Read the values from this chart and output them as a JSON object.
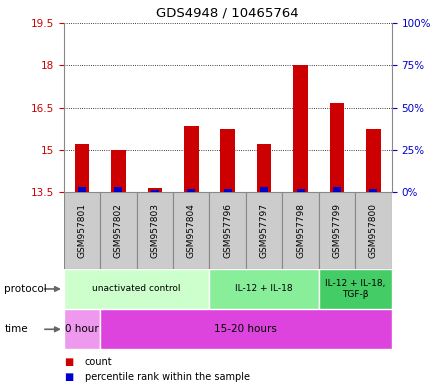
{
  "title": "GDS4948 / 10465764",
  "samples": [
    "GSM957801",
    "GSM957802",
    "GSM957803",
    "GSM957804",
    "GSM957796",
    "GSM957797",
    "GSM957798",
    "GSM957799",
    "GSM957800"
  ],
  "counts": [
    15.2,
    15.0,
    13.65,
    15.85,
    15.75,
    15.2,
    18.0,
    16.65,
    15.75
  ],
  "percentile_ranks": [
    3,
    3,
    1,
    2,
    2,
    3,
    2,
    3,
    2
  ],
  "ylim": [
    13.5,
    19.5
  ],
  "yticks": [
    13.5,
    15,
    16.5,
    18,
    19.5
  ],
  "right_yticks": [
    0,
    25,
    50,
    75,
    100
  ],
  "bar_color": "#cc0000",
  "blue_color": "#0000cc",
  "protocol_groups": [
    {
      "label": "unactivated control",
      "start": 0,
      "end": 4,
      "color": "#ccffcc"
    },
    {
      "label": "IL-12 + IL-18",
      "start": 4,
      "end": 7,
      "color": "#88ee99"
    },
    {
      "label": "IL-12 + IL-18,\nTGF-β",
      "start": 7,
      "end": 9,
      "color": "#44cc66"
    }
  ],
  "time_groups": [
    {
      "label": "0 hour",
      "start": 0,
      "end": 1,
      "color": "#ee99ee"
    },
    {
      "label": "15-20 hours",
      "start": 1,
      "end": 9,
      "color": "#dd44dd"
    }
  ],
  "legend_count_color": "#cc0000",
  "legend_pct_color": "#0000cc",
  "background_color": "#ffffff",
  "grid_color": "#000000",
  "sample_box_color": "#cccccc",
  "sample_box_edge": "#888888"
}
